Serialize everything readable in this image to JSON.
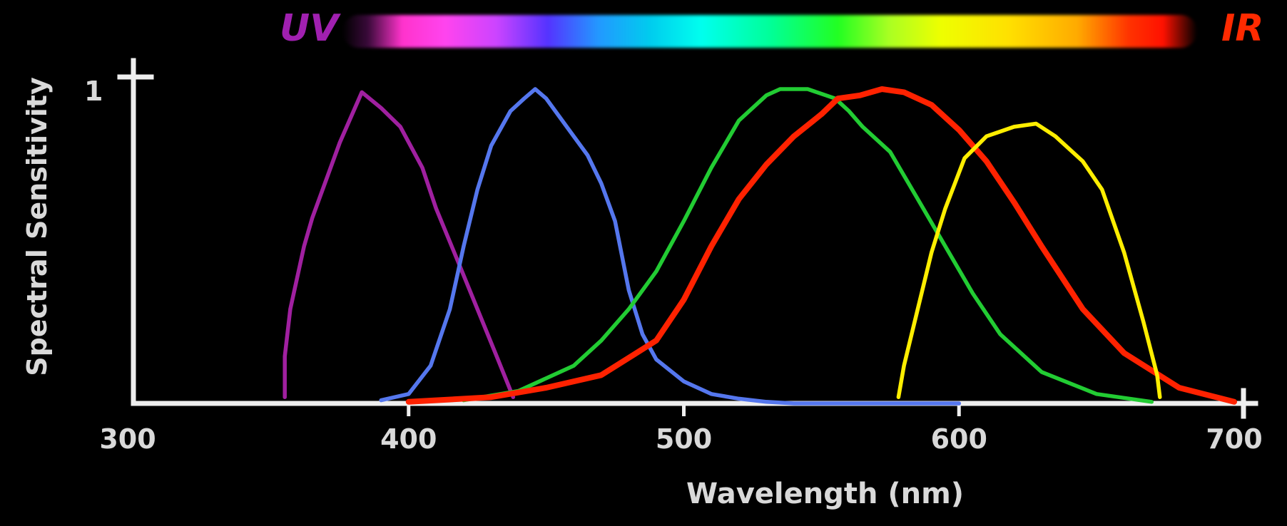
{
  "spectrum": {
    "uv_label": "UV",
    "ir_label": "IR",
    "uv_color": "#a020b0",
    "ir_color": "#ff2a00"
  },
  "chart_data": {
    "type": "line",
    "xlabel": "Wavelength (nm)",
    "ylabel": "Spectral Sensitivity",
    "xlim": [
      300,
      700
    ],
    "ylim": [
      0,
      1
    ],
    "x_ticks": [
      "300",
      "400",
      "500",
      "600",
      "700"
    ],
    "y_ticks": [
      "1"
    ],
    "grid": false,
    "series": [
      {
        "color": "#a020a0",
        "x": [
          355,
          355,
          357,
          362,
          365,
          375,
          383,
          390,
          397,
          405,
          410,
          418,
          425,
          432,
          438
        ],
        "y": [
          0.02,
          0.15,
          0.3,
          0.5,
          0.59,
          0.83,
          0.99,
          0.94,
          0.88,
          0.75,
          0.62,
          0.45,
          0.3,
          0.15,
          0.02
        ]
      },
      {
        "color": "#5577ee",
        "x": [
          390,
          400,
          408,
          415,
          420,
          425,
          430,
          437,
          442,
          446,
          450,
          455,
          460,
          465,
          470,
          475,
          480,
          485,
          490,
          500,
          510,
          520,
          530,
          540,
          560,
          600
        ],
        "y": [
          0.01,
          0.03,
          0.12,
          0.3,
          0.5,
          0.68,
          0.82,
          0.93,
          0.97,
          1.0,
          0.97,
          0.91,
          0.85,
          0.79,
          0.7,
          0.58,
          0.36,
          0.22,
          0.14,
          0.07,
          0.03,
          0.015,
          0.005,
          0.0,
          0.0,
          0.0
        ]
      },
      {
        "color": "#22cc33",
        "x": [
          420,
          440,
          460,
          470,
          480,
          490,
          500,
          510,
          520,
          530,
          535,
          545,
          555,
          560,
          565,
          575,
          585,
          595,
          605,
          615,
          630,
          650,
          670
        ],
        "y": [
          0.01,
          0.04,
          0.12,
          0.2,
          0.3,
          0.42,
          0.58,
          0.75,
          0.9,
          0.98,
          1.0,
          1.0,
          0.97,
          0.93,
          0.88,
          0.8,
          0.65,
          0.5,
          0.35,
          0.22,
          0.1,
          0.03,
          0.005
        ]
      },
      {
        "color": "#ff2200",
        "x": [
          400,
          430,
          450,
          470,
          490,
          500,
          510,
          520,
          530,
          540,
          550,
          556,
          564,
          572,
          580,
          590,
          600,
          610,
          620,
          630,
          645,
          660,
          680,
          700
        ],
        "y": [
          0.005,
          0.02,
          0.05,
          0.09,
          0.2,
          0.33,
          0.5,
          0.65,
          0.76,
          0.85,
          0.92,
          0.97,
          0.98,
          1.0,
          0.99,
          0.95,
          0.87,
          0.77,
          0.64,
          0.5,
          0.3,
          0.16,
          0.05,
          0.005
        ]
      },
      {
        "color": "#ffee00",
        "x": [
          578,
          580,
          585,
          590,
          595,
          602,
          610,
          620,
          628,
          635,
          645,
          652,
          660,
          667,
          672,
          673
        ],
        "y": [
          0.02,
          0.12,
          0.3,
          0.48,
          0.62,
          0.78,
          0.85,
          0.88,
          0.89,
          0.85,
          0.77,
          0.68,
          0.48,
          0.26,
          0.09,
          0.02
        ]
      }
    ]
  }
}
